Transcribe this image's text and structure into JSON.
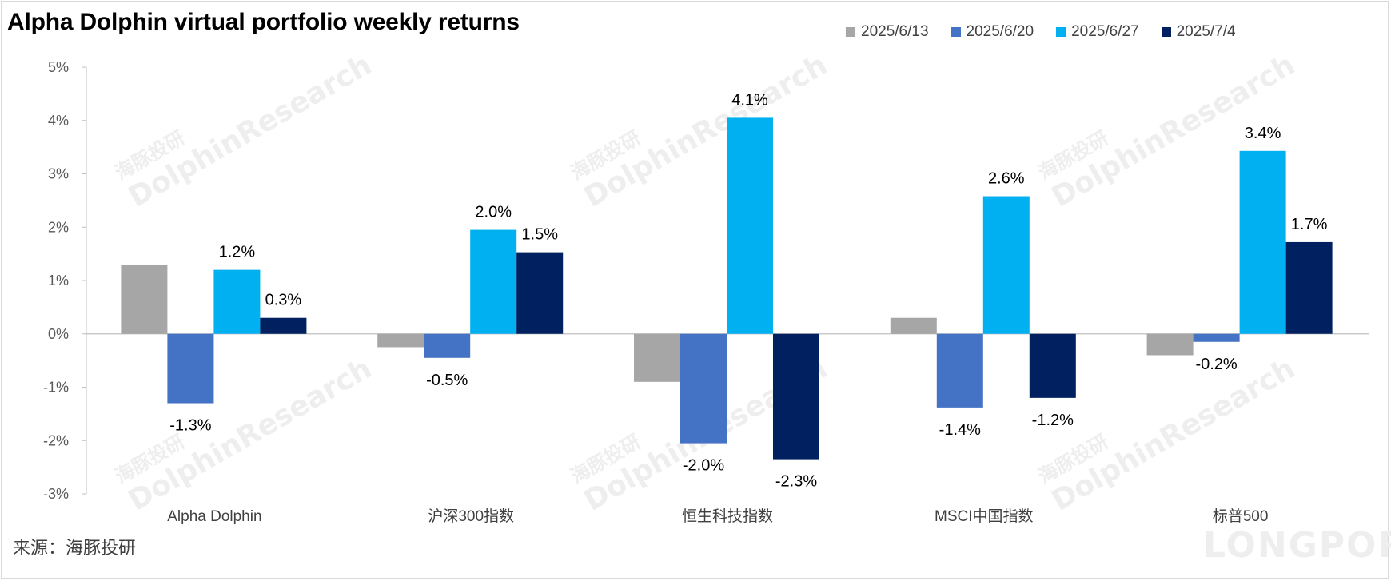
{
  "header": {
    "title": "Alpha Dolphin virtual portfolio weekly returns"
  },
  "source": {
    "text": "来源：海豚投研"
  },
  "watermark": {
    "brand": "DolphinResearch",
    "cn": "海豚投研",
    "logo": "LONGPORT"
  },
  "chart_data": {
    "type": "bar",
    "title": "Alpha Dolphin virtual portfolio weekly returns",
    "xlabel": "",
    "ylabel": "",
    "categories": [
      "Alpha Dolphin",
      "沪深300指数",
      "恒生科技指数",
      "MSCI中国指数",
      "标普500"
    ],
    "series": [
      {
        "name": "2025/6/13",
        "color": "#a6a6a6",
        "values": [
          1.3,
          -0.25,
          -0.9,
          0.3,
          -0.4
        ],
        "labels": [
          "",
          "",
          "",
          "",
          ""
        ]
      },
      {
        "name": "2025/6/20",
        "color": "#4472c4",
        "values": [
          -1.3,
          -0.45,
          -2.05,
          -1.38,
          -0.15
        ],
        "labels": [
          "-1.3%",
          "-0.5%",
          "-2.0%",
          "-1.4%",
          "-0.2%"
        ]
      },
      {
        "name": "2025/6/27",
        "color": "#00b0f0",
        "values": [
          1.2,
          1.95,
          4.05,
          2.58,
          3.43
        ],
        "labels": [
          "1.2%",
          "2.0%",
          "4.1%",
          "2.6%",
          "3.4%"
        ]
      },
      {
        "name": "2025/7/4",
        "color": "#002060",
        "values": [
          0.3,
          1.53,
          -2.35,
          -1.2,
          1.72
        ],
        "labels": [
          "0.3%",
          "1.5%",
          "-2.3%",
          "-1.2%",
          "1.7%"
        ]
      }
    ],
    "ylim": [
      -3,
      5
    ],
    "yticks": [
      5,
      4,
      3,
      2,
      1,
      0,
      -1,
      -2,
      -3
    ],
    "ytick_labels": [
      "5%",
      "4%",
      "3%",
      "2%",
      "1%",
      "0%",
      "-1%",
      "-2%",
      "-3%"
    ],
    "grid": false,
    "legend": "top-right"
  }
}
